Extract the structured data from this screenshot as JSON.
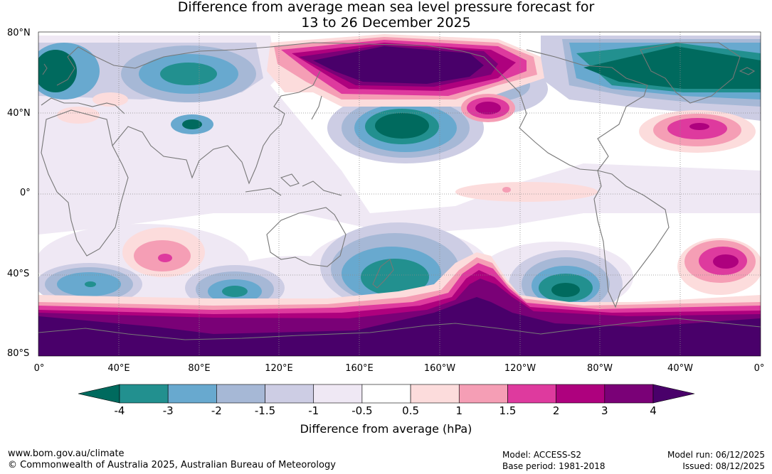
{
  "title": {
    "line1": "Difference from average mean sea level pressure forecast for",
    "line2": "13 to 26 December 2025"
  },
  "map": {
    "lat_labels": [
      "80°N",
      "40°N",
      "0°",
      "40°S",
      "80°S"
    ],
    "lon_labels": [
      "0°",
      "40°E",
      "80°E",
      "120°E",
      "160°E",
      "160°W",
      "120°W",
      "80°W",
      "40°W",
      "0°"
    ]
  },
  "colorbar": {
    "title": "Difference from average (hPa)",
    "ticks": [
      "-4",
      "-3",
      "-2",
      "-1.5",
      "-1",
      "-0.5",
      "0.5",
      "1",
      "1.5",
      "2",
      "3",
      "4"
    ],
    "colors": [
      "#006a5e",
      "#22908f",
      "#68a9cf",
      "#a6b8d6",
      "#cdcde4",
      "#efe8f4",
      "#ffffff",
      "#fcdcdc",
      "#f59eb5",
      "#de3a9e",
      "#ae017e",
      "#7a0177",
      "#49006a"
    ]
  },
  "footer": {
    "url": "www.bom.gov.au/climate",
    "copyright": "© Commonwealth of Australia 2025, Australian Bureau of Meteorology",
    "model": "Model: ACCESS-S2",
    "base_period": "Base period: 1981-2018",
    "model_run": "Model run: 06/12/2025",
    "issued": "Issued: 08/12/2025"
  }
}
